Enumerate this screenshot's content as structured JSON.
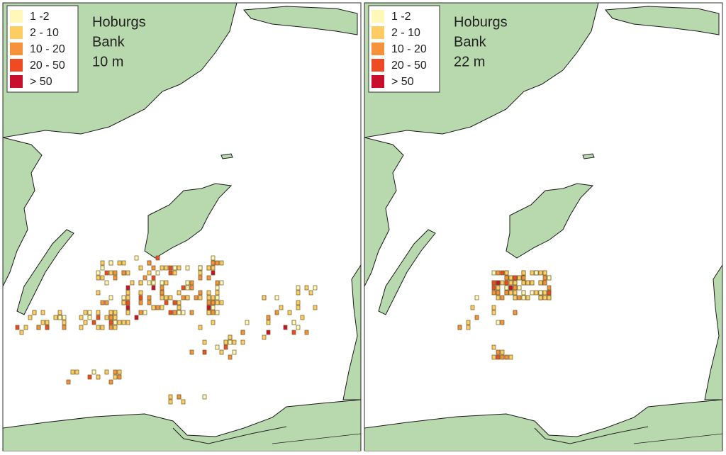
{
  "legend": [
    {
      "label": "1 -2",
      "color": "#fff8b8"
    },
    {
      "label": "2 - 10",
      "color": "#fdcd63"
    },
    {
      "label": "10 - 20",
      "color": "#f5923b"
    },
    {
      "label": "20 - 50",
      "color": "#ee4a24"
    },
    {
      "label": "> 50",
      "color": "#c8102e"
    }
  ],
  "panels": [
    {
      "title": [
        "Hoburgs",
        "Bank",
        "10 m"
      ]
    },
    {
      "title": [
        "Hoburgs",
        "Bank",
        "22 m"
      ]
    }
  ]
}
